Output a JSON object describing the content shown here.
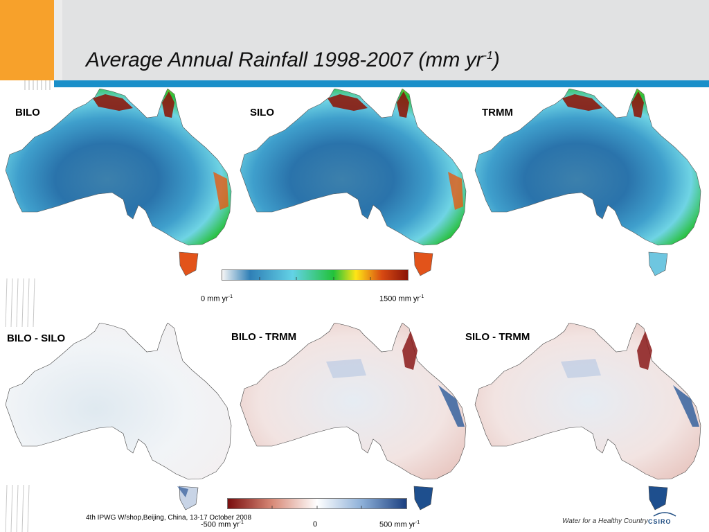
{
  "slide": {
    "title_main": "Average Annual Rainfall 1998-2007 (mm yr",
    "title_sup": "-1",
    "title_end": ")"
  },
  "maps": {
    "top": [
      {
        "label": "BILO",
        "variant": "rainfall"
      },
      {
        "label": "SILO",
        "variant": "rainfall"
      },
      {
        "label": "TRMM",
        "variant": "rainfall"
      }
    ],
    "bottom": [
      {
        "label": "BILO - SILO",
        "variant": "difference-low"
      },
      {
        "label": "BILO - TRMM",
        "variant": "difference"
      },
      {
        "label": "SILO - TRMM",
        "variant": "difference"
      }
    ]
  },
  "rainfall_colorbar": {
    "min_value": "0 mm yr",
    "min_sup": "-1",
    "max_value": "1500 mm yr",
    "max_sup": "-1",
    "colors": [
      "#f5f5f5",
      "#2f7fb6",
      "#63d2e6",
      "#22c23a",
      "#ffe516",
      "#d84a12",
      "#8a1408"
    ]
  },
  "difference_colorbar": {
    "min_value": "-500 mm yr",
    "min_sup": "-1",
    "mid_value": "0",
    "max_value": "500 mm yr",
    "max_sup": "-1",
    "colors": [
      "#7a0e0e",
      "#d88a78",
      "#ffffff",
      "#8db0d8",
      "#1b3f80"
    ]
  },
  "footer": {
    "text": "4th IPWG W/shop,Beijing, China, 13-17 October 2008",
    "tagline": "Water for a Healthy Country",
    "logo": "CSIRO"
  }
}
